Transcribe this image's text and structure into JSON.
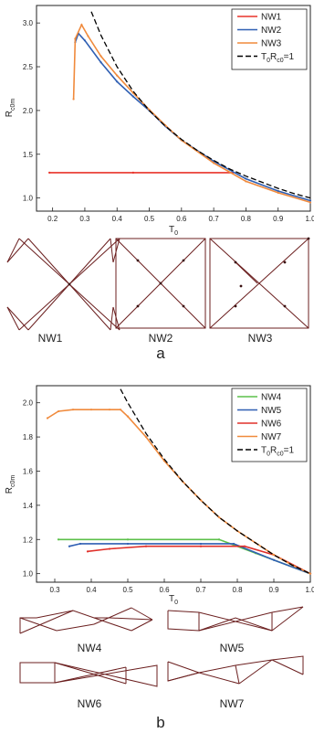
{
  "colors": {
    "NW1": "#e8332a",
    "NW2": "#2f5fb3",
    "NW3": "#f08a3c",
    "NW4": "#5cc04a",
    "NW5": "#2f5fb3",
    "NW6": "#e0302a",
    "NW7": "#f08a3c",
    "ref": "#000000"
  },
  "chart_data": [
    {
      "type": "line",
      "panel_label": "a",
      "xlabel": "T",
      "xlabel_sub": "0",
      "ylabel": "R",
      "ylabel_sub": "c0m",
      "xlim": [
        0.15,
        1.0
      ],
      "ylim": [
        0.85,
        3.2
      ],
      "xticks": [
        "0.2",
        "0.3",
        "0.4",
        "0.5",
        "0.6",
        "0.7",
        "0.8",
        "0.9",
        "1.0"
      ],
      "yticks": [
        "1.0",
        "1.5",
        "2.0",
        "2.5",
        "3.0"
      ],
      "legend_position": "top-right",
      "series": [
        {
          "name": "NW1",
          "x": [
            0.19,
            0.45,
            0.76
          ],
          "y": [
            1.29,
            1.29,
            1.29
          ]
        },
        {
          "name": "NW2",
          "x": [
            0.27,
            0.28,
            0.3,
            0.35,
            0.4,
            0.45,
            0.5,
            0.55,
            0.6,
            0.7,
            0.8,
            0.9,
            1.0
          ],
          "y": [
            2.78,
            2.88,
            2.8,
            2.55,
            2.33,
            2.16,
            2.0,
            1.82,
            1.66,
            1.42,
            1.22,
            1.08,
            0.97
          ]
        },
        {
          "name": "NW3",
          "x": [
            0.265,
            0.27,
            0.29,
            0.31,
            0.35,
            0.4,
            0.45,
            0.5,
            0.55,
            0.6,
            0.7,
            0.8,
            0.9,
            1.0
          ],
          "y": [
            2.13,
            2.82,
            2.98,
            2.85,
            2.62,
            2.4,
            2.2,
            2.01,
            1.83,
            1.66,
            1.4,
            1.19,
            1.06,
            0.95
          ]
        },
        {
          "name": "T₀R₀c=1",
          "x": [
            0.32,
            0.35,
            0.4,
            0.45,
            0.5,
            0.55,
            0.6,
            0.65,
            0.7,
            0.75,
            0.8,
            0.85,
            0.9,
            0.95,
            1.0
          ],
          "y": [
            3.13,
            2.86,
            2.5,
            2.22,
            2.0,
            1.82,
            1.67,
            1.54,
            1.43,
            1.33,
            1.25,
            1.18,
            1.11,
            1.05,
            1.0
          ]
        }
      ],
      "legend_items": [
        {
          "label": "NW1",
          "sub": ""
        },
        {
          "label": "NW2",
          "sub": ""
        },
        {
          "label": "NW3",
          "sub": ""
        },
        {
          "label": "T",
          "sub": "0",
          "label2": "R",
          "sub2": "c0",
          "tail": "=1"
        }
      ],
      "network_labels": [
        "NW1",
        "NW2",
        "NW3"
      ]
    },
    {
      "type": "line",
      "panel_label": "b",
      "xlabel": "T",
      "xlabel_sub": "0",
      "ylabel": "R",
      "ylabel_sub": "c0m",
      "xlim": [
        0.25,
        1.0
      ],
      "ylim": [
        0.95,
        2.1
      ],
      "xticks": [
        "0.3",
        "0.4",
        "0.5",
        "0.6",
        "0.7",
        "0.8",
        "0.9",
        "1.0"
      ],
      "yticks": [
        "1.0",
        "1.2",
        "1.4",
        "1.6",
        "1.8",
        "2.0"
      ],
      "legend_position": "top-right",
      "series": [
        {
          "name": "NW4",
          "x": [
            0.31,
            0.5,
            0.75,
            0.85,
            1.0
          ],
          "y": [
            1.2,
            1.2,
            1.2,
            1.12,
            1.0
          ]
        },
        {
          "name": "NW5",
          "x": [
            0.34,
            0.37,
            0.5,
            0.7,
            0.79,
            0.9,
            1.0
          ],
          "y": [
            1.16,
            1.175,
            1.175,
            1.175,
            1.175,
            1.08,
            1.0
          ]
        },
        {
          "name": "NW6",
          "x": [
            0.39,
            0.45,
            0.55,
            0.7,
            0.82,
            0.9,
            1.0
          ],
          "y": [
            1.13,
            1.145,
            1.16,
            1.16,
            1.16,
            1.11,
            1.0
          ]
        },
        {
          "name": "NW7",
          "x": [
            0.28,
            0.31,
            0.35,
            0.4,
            0.45,
            0.48,
            0.5,
            0.55,
            0.6,
            0.65,
            0.7,
            0.75,
            0.8,
            0.85,
            0.9,
            0.95,
            1.0
          ],
          "y": [
            1.91,
            1.95,
            1.96,
            1.96,
            1.96,
            1.96,
            1.92,
            1.8,
            1.66,
            1.54,
            1.43,
            1.33,
            1.25,
            1.18,
            1.11,
            1.05,
            1.0
          ]
        },
        {
          "name": "T₀R₀c=1",
          "x": [
            0.48,
            0.5,
            0.55,
            0.6,
            0.65,
            0.7,
            0.75,
            0.8,
            0.85,
            0.9,
            0.95,
            1.0
          ],
          "y": [
            2.08,
            2.0,
            1.82,
            1.67,
            1.54,
            1.43,
            1.33,
            1.25,
            1.18,
            1.11,
            1.05,
            1.0
          ]
        }
      ],
      "legend_items": [
        {
          "label": "NW4",
          "sub": ""
        },
        {
          "label": "NW5",
          "sub": ""
        },
        {
          "label": "NW6",
          "sub": ""
        },
        {
          "label": "NW7",
          "sub": ""
        },
        {
          "label": "T",
          "sub": "0",
          "label2": "R",
          "sub2": "c0",
          "tail": "=1"
        }
      ],
      "network_labels": [
        "NW4",
        "NW5",
        "NW6",
        "NW7"
      ]
    }
  ]
}
